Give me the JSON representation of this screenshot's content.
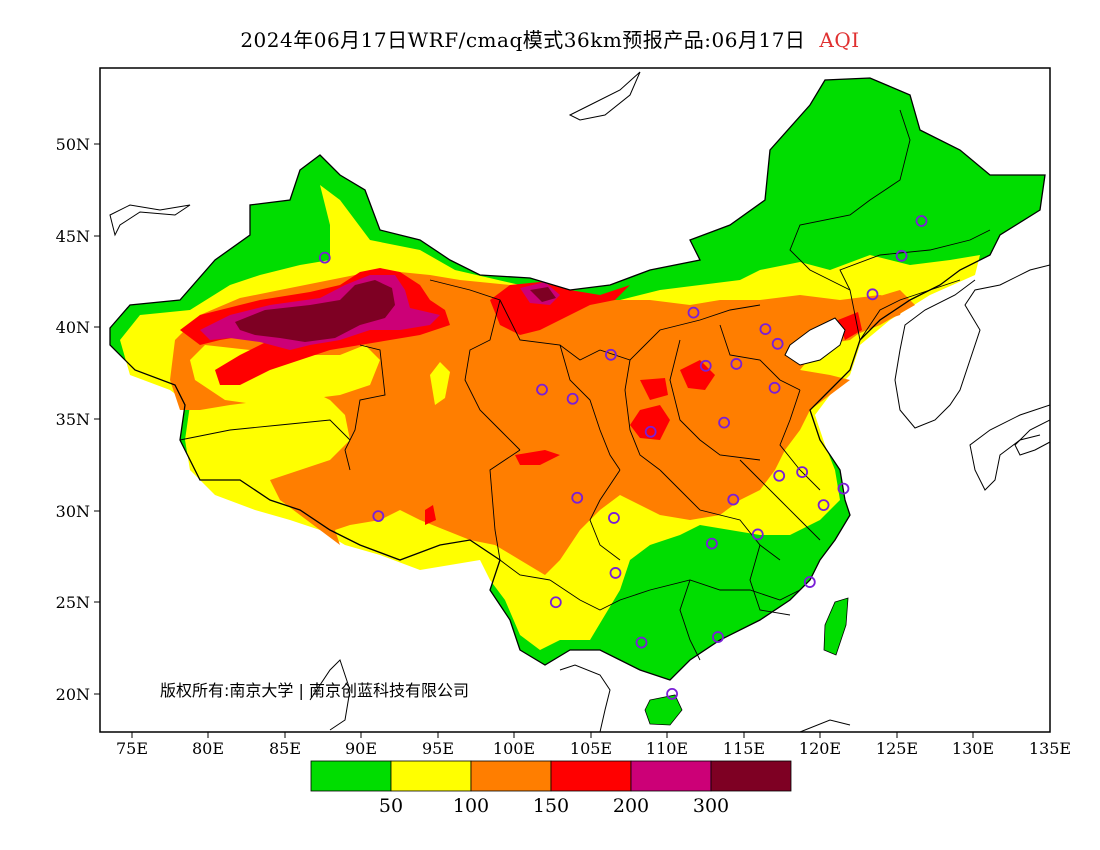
{
  "title": {
    "main": "2024年06月17日WRF/cmaq模式36km预报产品:06月17日",
    "product": "AQI"
  },
  "map": {
    "lat_ticks": [
      "50N",
      "45N",
      "40N",
      "35N",
      "30N",
      "25N",
      "20N"
    ],
    "lon_ticks": [
      "75E",
      "80E",
      "85E",
      "90E",
      "95E",
      "100E",
      "105E",
      "110E",
      "115E",
      "120E",
      "125E",
      "130E",
      "135E"
    ],
    "copyright": "版权所有:南京大学 | 南京创蓝科技有限公司"
  },
  "legend": {
    "thresholds": [
      "50",
      "100",
      "150",
      "200",
      "300"
    ],
    "colors": [
      "#00dd00",
      "#ffff00",
      "#ff7e00",
      "#ff0000",
      "#cc0077",
      "#7e0023"
    ]
  },
  "stations": [
    {
      "lon": 87.6,
      "lat": 43.8
    },
    {
      "lon": 91.1,
      "lat": 29.7
    },
    {
      "lon": 101.8,
      "lat": 36.6
    },
    {
      "lon": 103.8,
      "lat": 36.1
    },
    {
      "lon": 104.1,
      "lat": 30.7
    },
    {
      "lon": 106.6,
      "lat": 26.6
    },
    {
      "lon": 102.7,
      "lat": 25.0
    },
    {
      "lon": 106.5,
      "lat": 29.6
    },
    {
      "lon": 108.9,
      "lat": 34.3
    },
    {
      "lon": 106.3,
      "lat": 38.5
    },
    {
      "lon": 111.7,
      "lat": 40.8
    },
    {
      "lon": 112.5,
      "lat": 37.9
    },
    {
      "lon": 114.5,
      "lat": 38.0
    },
    {
      "lon": 116.4,
      "lat": 39.9
    },
    {
      "lon": 117.2,
      "lat": 39.1
    },
    {
      "lon": 117.0,
      "lat": 36.7
    },
    {
      "lon": 113.7,
      "lat": 34.8
    },
    {
      "lon": 114.3,
      "lat": 30.6
    },
    {
      "lon": 112.9,
      "lat": 28.2
    },
    {
      "lon": 115.9,
      "lat": 28.7
    },
    {
      "lon": 117.3,
      "lat": 31.9
    },
    {
      "lon": 118.8,
      "lat": 32.1
    },
    {
      "lon": 120.2,
      "lat": 30.3
    },
    {
      "lon": 121.5,
      "lat": 31.2
    },
    {
      "lon": 119.3,
      "lat": 26.1
    },
    {
      "lon": 113.3,
      "lat": 23.1
    },
    {
      "lon": 108.3,
      "lat": 22.8
    },
    {
      "lon": 110.3,
      "lat": 20.0
    },
    {
      "lon": 123.4,
      "lat": 41.8
    },
    {
      "lon": 125.3,
      "lat": 43.9
    },
    {
      "lon": 126.6,
      "lat": 45.8
    }
  ]
}
